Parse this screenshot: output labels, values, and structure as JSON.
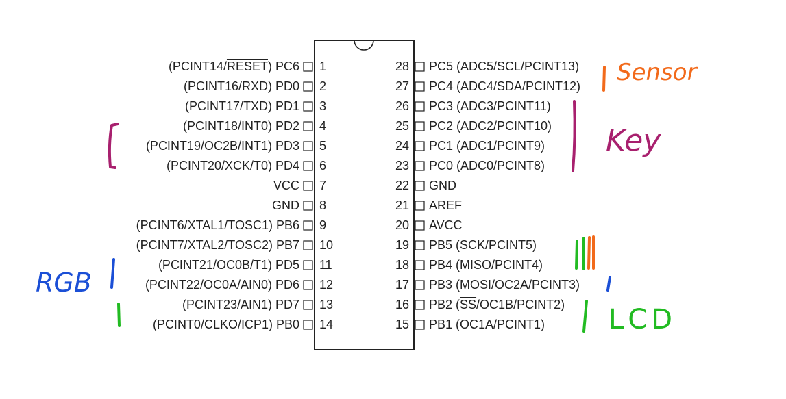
{
  "chip": {
    "left_pins": [
      {
        "num": "1",
        "label_pre": "(PCINT14/",
        "label_over": "RESET",
        "label_post": ") PC6"
      },
      {
        "num": "2",
        "label_pre": "(PCINT16/RXD) PD0",
        "label_over": "",
        "label_post": ""
      },
      {
        "num": "3",
        "label_pre": "(PCINT17/TXD) PD1",
        "label_over": "",
        "label_post": ""
      },
      {
        "num": "4",
        "label_pre": "(PCINT18/INT0) PD2",
        "label_over": "",
        "label_post": ""
      },
      {
        "num": "5",
        "label_pre": "(PCINT19/OC2B/INT1) PD3",
        "label_over": "",
        "label_post": ""
      },
      {
        "num": "6",
        "label_pre": "(PCINT20/XCK/T0) PD4",
        "label_over": "",
        "label_post": ""
      },
      {
        "num": "7",
        "label_pre": "VCC",
        "label_over": "",
        "label_post": ""
      },
      {
        "num": "8",
        "label_pre": "GND",
        "label_over": "",
        "label_post": ""
      },
      {
        "num": "9",
        "label_pre": "(PCINT6/XTAL1/TOSC1) PB6",
        "label_over": "",
        "label_post": ""
      },
      {
        "num": "10",
        "label_pre": "(PCINT7/XTAL2/TOSC2) PB7",
        "label_over": "",
        "label_post": ""
      },
      {
        "num": "11",
        "label_pre": "(PCINT21/OC0B/T1) PD5",
        "label_over": "",
        "label_post": ""
      },
      {
        "num": "12",
        "label_pre": "(PCINT22/OC0A/AIN0) PD6",
        "label_over": "",
        "label_post": ""
      },
      {
        "num": "13",
        "label_pre": "(PCINT23/AIN1) PD7",
        "label_over": "",
        "label_post": ""
      },
      {
        "num": "14",
        "label_pre": "(PCINT0/CLKO/ICP1) PB0",
        "label_over": "",
        "label_post": ""
      }
    ],
    "right_pins": [
      {
        "num": "28",
        "label_pre": "PC5 (ADC5/SCL/PCINT13)",
        "label_over": "",
        "label_post": ""
      },
      {
        "num": "27",
        "label_pre": "PC4 (ADC4/SDA/PCINT12)",
        "label_over": "",
        "label_post": ""
      },
      {
        "num": "26",
        "label_pre": "PC3 (ADC3/PCINT11)",
        "label_over": "",
        "label_post": ""
      },
      {
        "num": "25",
        "label_pre": "PC2 (ADC2/PCINT10)",
        "label_over": "",
        "label_post": ""
      },
      {
        "num": "24",
        "label_pre": "PC1 (ADC1/PCINT9)",
        "label_over": "",
        "label_post": ""
      },
      {
        "num": "23",
        "label_pre": "PC0 (ADC0/PCINT8)",
        "label_over": "",
        "label_post": ""
      },
      {
        "num": "22",
        "label_pre": "GND",
        "label_over": "",
        "label_post": ""
      },
      {
        "num": "21",
        "label_pre": "AREF",
        "label_over": "",
        "label_post": ""
      },
      {
        "num": "20",
        "label_pre": "AVCC",
        "label_over": "",
        "label_post": ""
      },
      {
        "num": "19",
        "label_pre": "PB5 (SCK/PCINT5)",
        "label_over": "",
        "label_post": ""
      },
      {
        "num": "18",
        "label_pre": "PB4 (MISO/PCINT4)",
        "label_over": "",
        "label_post": ""
      },
      {
        "num": "17",
        "label_pre": "PB3 (MOSI/OC2A/PCINT3)",
        "label_over": "",
        "label_post": ""
      },
      {
        "num": "16",
        "label_pre": "PB2 (",
        "label_over": "SS",
        "label_post": "/OC1B/PCINT2)"
      },
      {
        "num": "15",
        "label_pre": "PB1 (OC1A/PCINT1)",
        "label_over": "",
        "label_post": ""
      }
    ]
  },
  "annotations": {
    "sensor": {
      "text": "Sensor",
      "color": "#f26a1b"
    },
    "key": {
      "text": "Key",
      "color": "#a8206e"
    },
    "rgb": {
      "text": "RGB",
      "color": "#1b4fd6"
    },
    "lcd": {
      "text": "LCD",
      "color": "#22bb22"
    }
  }
}
